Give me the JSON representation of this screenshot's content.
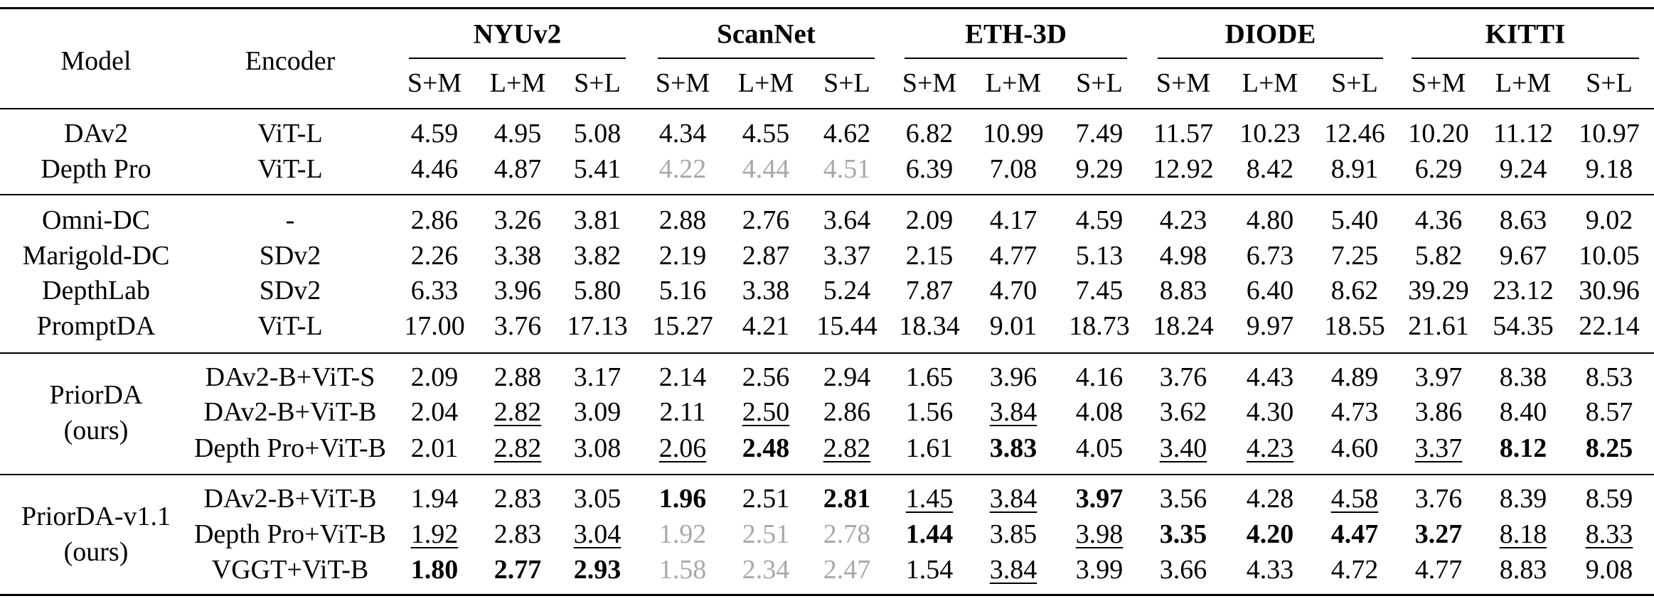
{
  "table": {
    "header": {
      "model": "Model",
      "encoder": "Encoder",
      "datasets": [
        "NYUv2",
        "ScanNet",
        "ETH-3D",
        "DIODE",
        "KITTI"
      ],
      "subcolumns": [
        "S+M",
        "L+M",
        "S+L"
      ]
    },
    "sections": [
      {
        "label_lines": [],
        "rows": [
          {
            "model": "DAv2",
            "encoder": "ViT-L",
            "values": [
              {
                "v": "4.59"
              },
              {
                "v": "4.95"
              },
              {
                "v": "5.08"
              },
              {
                "v": "4.34"
              },
              {
                "v": "4.55"
              },
              {
                "v": "4.62"
              },
              {
                "v": "6.82"
              },
              {
                "v": "10.99"
              },
              {
                "v": "7.49"
              },
              {
                "v": "11.57"
              },
              {
                "v": "10.23"
              },
              {
                "v": "12.46"
              },
              {
                "v": "10.20"
              },
              {
                "v": "11.12"
              },
              {
                "v": "10.97"
              }
            ]
          },
          {
            "model": "Depth Pro",
            "encoder": "ViT-L",
            "values": [
              {
                "v": "4.46"
              },
              {
                "v": "4.87"
              },
              {
                "v": "5.41"
              },
              {
                "v": "4.22",
                "s": "g"
              },
              {
                "v": "4.44",
                "s": "g"
              },
              {
                "v": "4.51",
                "s": "g"
              },
              {
                "v": "6.39"
              },
              {
                "v": "7.08"
              },
              {
                "v": "9.29"
              },
              {
                "v": "12.92"
              },
              {
                "v": "8.42"
              },
              {
                "v": "8.91"
              },
              {
                "v": "6.29"
              },
              {
                "v": "9.24"
              },
              {
                "v": "9.18"
              }
            ]
          }
        ]
      },
      {
        "label_lines": [],
        "rows": [
          {
            "model": "Omni-DC",
            "encoder": "-",
            "values": [
              {
                "v": "2.86"
              },
              {
                "v": "3.26"
              },
              {
                "v": "3.81"
              },
              {
                "v": "2.88"
              },
              {
                "v": "2.76"
              },
              {
                "v": "3.64"
              },
              {
                "v": "2.09"
              },
              {
                "v": "4.17"
              },
              {
                "v": "4.59"
              },
              {
                "v": "4.23"
              },
              {
                "v": "4.80"
              },
              {
                "v": "5.40"
              },
              {
                "v": "4.36"
              },
              {
                "v": "8.63"
              },
              {
                "v": "9.02"
              }
            ]
          },
          {
            "model": "Marigold-DC",
            "encoder": "SDv2",
            "values": [
              {
                "v": "2.26"
              },
              {
                "v": "3.38"
              },
              {
                "v": "3.82"
              },
              {
                "v": "2.19"
              },
              {
                "v": "2.87"
              },
              {
                "v": "3.37"
              },
              {
                "v": "2.15"
              },
              {
                "v": "4.77"
              },
              {
                "v": "5.13"
              },
              {
                "v": "4.98"
              },
              {
                "v": "6.73"
              },
              {
                "v": "7.25"
              },
              {
                "v": "5.82"
              },
              {
                "v": "9.67"
              },
              {
                "v": "10.05"
              }
            ]
          },
          {
            "model": "DepthLab",
            "encoder": "SDv2",
            "values": [
              {
                "v": "6.33"
              },
              {
                "v": "3.96"
              },
              {
                "v": "5.80"
              },
              {
                "v": "5.16"
              },
              {
                "v": "3.38"
              },
              {
                "v": "5.24"
              },
              {
                "v": "7.87"
              },
              {
                "v": "4.70"
              },
              {
                "v": "7.45"
              },
              {
                "v": "8.83"
              },
              {
                "v": "6.40"
              },
              {
                "v": "8.62"
              },
              {
                "v": "39.29"
              },
              {
                "v": "23.12"
              },
              {
                "v": "30.96"
              }
            ]
          },
          {
            "model": "PromptDA",
            "encoder": "ViT-L",
            "values": [
              {
                "v": "17.00"
              },
              {
                "v": "3.76"
              },
              {
                "v": "17.13"
              },
              {
                "v": "15.27"
              },
              {
                "v": "4.21"
              },
              {
                "v": "15.44"
              },
              {
                "v": "18.34"
              },
              {
                "v": "9.01"
              },
              {
                "v": "18.73"
              },
              {
                "v": "18.24"
              },
              {
                "v": "9.97"
              },
              {
                "v": "18.55"
              },
              {
                "v": "21.61"
              },
              {
                "v": "54.35"
              },
              {
                "v": "22.14"
              }
            ]
          }
        ]
      },
      {
        "label_lines": [
          "PriorDA",
          "(ours)"
        ],
        "rows": [
          {
            "model": "",
            "encoder": "DAv2-B+ViT-S",
            "values": [
              {
                "v": "2.09"
              },
              {
                "v": "2.88"
              },
              {
                "v": "3.17"
              },
              {
                "v": "2.14"
              },
              {
                "v": "2.56"
              },
              {
                "v": "2.94"
              },
              {
                "v": "1.65"
              },
              {
                "v": "3.96"
              },
              {
                "v": "4.16"
              },
              {
                "v": "3.76"
              },
              {
                "v": "4.43"
              },
              {
                "v": "4.89"
              },
              {
                "v": "3.97"
              },
              {
                "v": "8.38"
              },
              {
                "v": "8.53"
              }
            ]
          },
          {
            "model": "",
            "encoder": "DAv2-B+ViT-B",
            "values": [
              {
                "v": "2.04"
              },
              {
                "v": "2.82",
                "s": "u"
              },
              {
                "v": "3.09"
              },
              {
                "v": "2.11"
              },
              {
                "v": "2.50",
                "s": "u"
              },
              {
                "v": "2.86"
              },
              {
                "v": "1.56"
              },
              {
                "v": "3.84",
                "s": "u"
              },
              {
                "v": "4.08"
              },
              {
                "v": "3.62"
              },
              {
                "v": "4.30"
              },
              {
                "v": "4.73"
              },
              {
                "v": "3.86"
              },
              {
                "v": "8.40"
              },
              {
                "v": "8.57"
              }
            ]
          },
          {
            "model": "",
            "encoder": "Depth Pro+ViT-B",
            "values": [
              {
                "v": "2.01"
              },
              {
                "v": "2.82",
                "s": "u"
              },
              {
                "v": "3.08"
              },
              {
                "v": "2.06",
                "s": "u"
              },
              {
                "v": "2.48",
                "s": "b"
              },
              {
                "v": "2.82",
                "s": "u"
              },
              {
                "v": "1.61"
              },
              {
                "v": "3.83",
                "s": "b"
              },
              {
                "v": "4.05"
              },
              {
                "v": "3.40",
                "s": "u"
              },
              {
                "v": "4.23",
                "s": "u"
              },
              {
                "v": "4.60"
              },
              {
                "v": "3.37",
                "s": "u"
              },
              {
                "v": "8.12",
                "s": "b"
              },
              {
                "v": "8.25",
                "s": "b"
              }
            ]
          }
        ]
      },
      {
        "label_lines": [
          "PriorDA-v1.1",
          "(ours)"
        ],
        "rows": [
          {
            "model": "",
            "encoder": "DAv2-B+ViT-B",
            "values": [
              {
                "v": "1.94"
              },
              {
                "v": "2.83"
              },
              {
                "v": "3.05"
              },
              {
                "v": "1.96",
                "s": "b"
              },
              {
                "v": "2.51"
              },
              {
                "v": "2.81",
                "s": "b"
              },
              {
                "v": "1.45",
                "s": "u"
              },
              {
                "v": "3.84",
                "s": "u"
              },
              {
                "v": "3.97",
                "s": "b"
              },
              {
                "v": "3.56"
              },
              {
                "v": "4.28"
              },
              {
                "v": "4.58",
                "s": "u"
              },
              {
                "v": "3.76"
              },
              {
                "v": "8.39"
              },
              {
                "v": "8.59"
              }
            ]
          },
          {
            "model": "",
            "encoder": "Depth Pro+ViT-B",
            "values": [
              {
                "v": "1.92",
                "s": "u"
              },
              {
                "v": "2.83"
              },
              {
                "v": "3.04",
                "s": "u"
              },
              {
                "v": "1.92",
                "s": "g"
              },
              {
                "v": "2.51",
                "s": "g"
              },
              {
                "v": "2.78",
                "s": "g"
              },
              {
                "v": "1.44",
                "s": "b"
              },
              {
                "v": "3.85"
              },
              {
                "v": "3.98",
                "s": "u"
              },
              {
                "v": "3.35",
                "s": "b"
              },
              {
                "v": "4.20",
                "s": "b"
              },
              {
                "v": "4.47",
                "s": "b"
              },
              {
                "v": "3.27",
                "s": "b"
              },
              {
                "v": "8.18",
                "s": "u"
              },
              {
                "v": "8.33",
                "s": "u"
              }
            ]
          },
          {
            "model": "",
            "encoder": "VGGT+ViT-B",
            "values": [
              {
                "v": "1.80",
                "s": "b"
              },
              {
                "v": "2.77",
                "s": "b"
              },
              {
                "v": "2.93",
                "s": "b"
              },
              {
                "v": "1.58",
                "s": "g"
              },
              {
                "v": "2.34",
                "s": "g"
              },
              {
                "v": "2.47",
                "s": "g"
              },
              {
                "v": "1.54"
              },
              {
                "v": "3.84",
                "s": "u"
              },
              {
                "v": "3.99"
              },
              {
                "v": "3.66"
              },
              {
                "v": "4.33"
              },
              {
                "v": "4.72"
              },
              {
                "v": "4.77"
              },
              {
                "v": "8.83"
              },
              {
                "v": "9.08"
              }
            ]
          }
        ]
      }
    ]
  }
}
